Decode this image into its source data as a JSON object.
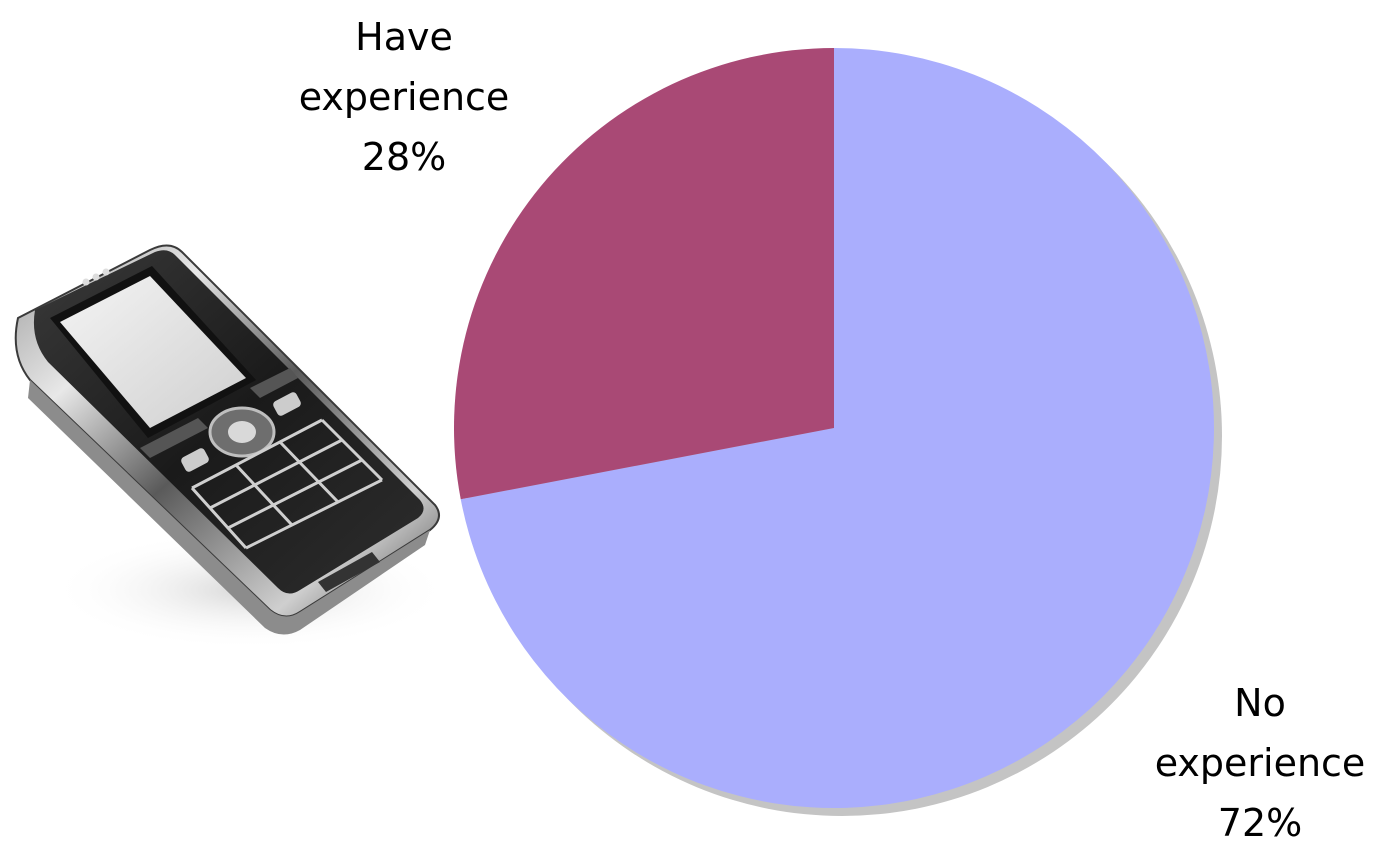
{
  "chart_data": {
    "type": "pie",
    "title": "",
    "slices": [
      {
        "label_line1": "No",
        "label_line2": "experience",
        "percent_label": "72%",
        "value": 72,
        "color": "#aaaefd"
      },
      {
        "label_line1": "Have",
        "label_line2": "experience",
        "percent_label": "28%",
        "value": 28,
        "color": "#a94975"
      }
    ],
    "shadow_color": "#c4c4c4"
  },
  "illustration": {
    "icon": "mobile-phone-icon"
  }
}
